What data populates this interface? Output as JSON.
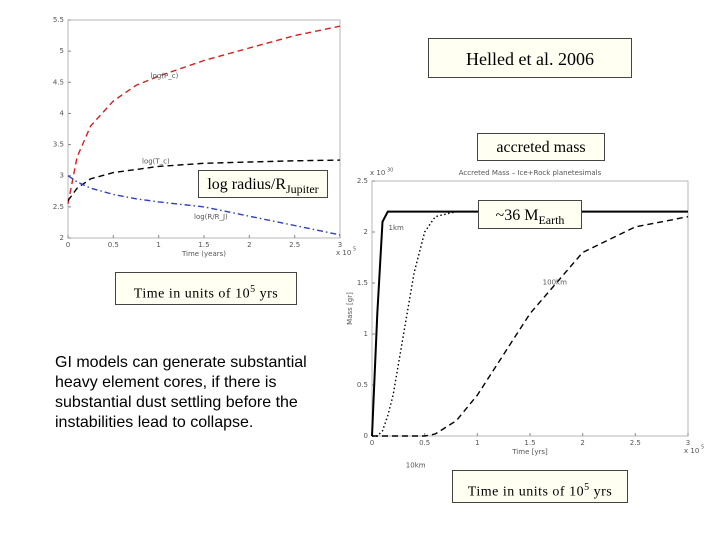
{
  "chart_data": [
    {
      "type": "line",
      "x_label": "Time (years)",
      "x_multiplier": "x 10",
      "x_multiplier_exp": "5",
      "x": [
        0,
        0.1,
        0.25,
        0.5,
        0.75,
        1,
        1.5,
        2,
        2.5,
        3
      ],
      "series": [
        {
          "name": "log(P_c)",
          "color": "#d42020",
          "style": "dashed",
          "values": [
            2.55,
            3.3,
            3.8,
            4.2,
            4.45,
            4.6,
            4.85,
            5.05,
            5.25,
            5.4
          ]
        },
        {
          "name": "log(T_c)",
          "color": "#000000",
          "style": "dashed",
          "values": [
            2.6,
            2.8,
            2.95,
            3.05,
            3.1,
            3.15,
            3.2,
            3.22,
            3.24,
            3.25
          ]
        },
        {
          "name": "log(R/R_J)",
          "color": "#3040c0",
          "style": "dashdot",
          "values": [
            3.0,
            2.9,
            2.8,
            2.7,
            2.63,
            2.58,
            2.5,
            2.35,
            2.2,
            2.05
          ]
        }
      ],
      "xlim": [
        0,
        3
      ],
      "xticks": [
        0,
        0.5,
        1,
        1.5,
        2,
        2.5,
        3
      ],
      "ylim": [
        2,
        5.5
      ],
      "yticks": [
        2,
        2.5,
        3,
        3.5,
        4,
        4.5,
        5,
        5.5
      ]
    },
    {
      "type": "line",
      "title": "Accreted Mass – Ice+Rock planetesimals",
      "x_label": "Time [yrs]",
      "y_label": "Mass [gr]",
      "x_multiplier": "x 10",
      "x_multiplier_exp": "5",
      "y_multiplier": "x 10",
      "y_multiplier_exp": "30",
      "x": [
        0,
        0.05,
        0.1,
        0.15,
        0.2,
        0.3,
        0.4,
        0.5,
        0.6,
        0.8,
        1,
        1.5,
        2,
        2.5,
        3
      ],
      "series": [
        {
          "name": "1km",
          "color": "#000000",
          "style": "solid",
          "values": [
            0,
            1.2,
            2.1,
            2.2,
            2.2,
            2.2,
            2.2,
            2.2,
            2.2,
            2.2,
            2.2,
            2.2,
            2.2,
            2.2,
            2.2
          ]
        },
        {
          "name": "10km",
          "color": "#000000",
          "style": "dotted",
          "values": [
            0,
            0,
            0.05,
            0.2,
            0.4,
            1.0,
            1.6,
            2.0,
            2.15,
            2.2,
            2.2,
            2.2,
            2.2,
            2.2,
            2.2
          ]
        },
        {
          "name": "100km",
          "color": "#000000",
          "style": "dashed",
          "values": [
            0,
            0,
            0,
            0,
            0,
            0,
            0,
            0,
            0.02,
            0.15,
            0.4,
            1.2,
            1.8,
            2.05,
            2.15
          ]
        }
      ],
      "xlim": [
        0,
        3
      ],
      "xticks": [
        0,
        0.5,
        1,
        1.5,
        2,
        2.5,
        3
      ],
      "ylim": [
        0,
        2.5
      ],
      "yticks": [
        0,
        0.5,
        1,
        1.5,
        2,
        2.5
      ]
    }
  ],
  "slide": {
    "citation": "Helled et al. 2006",
    "accreted_label": "accreted mass",
    "radius_label": {
      "text": "log radius/R",
      "sub": "Jupiter"
    },
    "mass_label": {
      "text": "~36 M",
      "sub": "Earth"
    },
    "time_label_left": {
      "text": "Time in units of 10",
      "sup": "5",
      "tail": " yrs"
    },
    "time_label_right": {
      "text": "Time in units of 10",
      "sup": "5",
      "tail": " yrs"
    },
    "body": "GI models can generate substantial heavy element cores, if there is substantial dust settling before the instabilities lead to collapse."
  }
}
